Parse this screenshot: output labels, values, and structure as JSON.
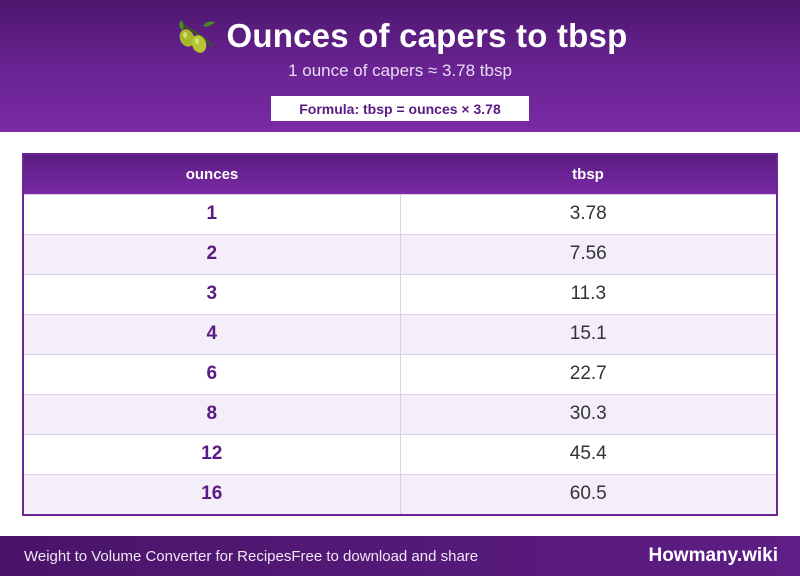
{
  "header": {
    "icon": "olive-caper-icon",
    "title": "Ounces of capers to tbsp",
    "subtitle": "1 ounce of capers ≈ 3.78 tbsp",
    "formula": "Formula: tbsp = ounces × 3.78"
  },
  "table": {
    "columns": [
      "ounces",
      "tbsp"
    ],
    "rows": [
      {
        "ounces": "1",
        "tbsp": "3.78"
      },
      {
        "ounces": "2",
        "tbsp": "7.56"
      },
      {
        "ounces": "3",
        "tbsp": "11.3"
      },
      {
        "ounces": "4",
        "tbsp": "15.1"
      },
      {
        "ounces": "6",
        "tbsp": "22.7"
      },
      {
        "ounces": "8",
        "tbsp": "30.3"
      },
      {
        "ounces": "12",
        "tbsp": "45.4"
      },
      {
        "ounces": "16",
        "tbsp": "60.5"
      }
    ]
  },
  "footer": {
    "left_text": "Weight to Volume Converter for Recipes",
    "left_text2": "Free to download and share",
    "brand": "Howmany.wiki"
  },
  "colors": {
    "primary": "#6a2494",
    "accent_text": "#5a1a82",
    "row_alt": "#f4eefa"
  }
}
